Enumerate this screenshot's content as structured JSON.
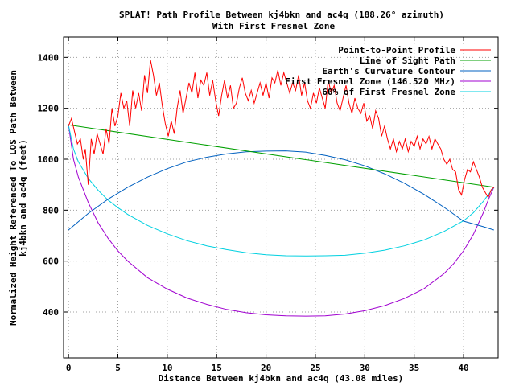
{
  "chart_data": {
    "type": "line",
    "title": "SPLAT! Path Profile Between kj4bkn and ac4q (188.26° azimuth)",
    "subtitle": "With First Fresnel Zone",
    "xlabel": "Distance Between kj4bkn and ac4q (43.08 miles)",
    "ylabel": "Normalized Height Referenced To LOS Path Between kj4bkn and ac4q (feet)",
    "ylabel_lines": [
      "Normalized Height Referenced To LOS Path Between",
      "kj4bkn and ac4q (feet)"
    ],
    "xlim": [
      -0.5,
      43.5
    ],
    "ylim": [
      220,
      1480
    ],
    "xticks": [
      0,
      5,
      10,
      15,
      20,
      25,
      30,
      35,
      40
    ],
    "yticks": [
      400,
      600,
      800,
      1000,
      1200,
      1400
    ],
    "grid": true,
    "legend_position": "top-right",
    "colors": {
      "profile": "#ff0000",
      "los": "#00a000",
      "earth": "#0060c0",
      "fresnel": "#a000d0",
      "fresnel60": "#00d0e0"
    },
    "series": [
      {
        "key": "profile",
        "name": "Point-to-Point Profile",
        "points": [
          [
            0,
            1130
          ],
          [
            0.3,
            1160
          ],
          [
            0.6,
            1110
          ],
          [
            0.9,
            1060
          ],
          [
            1.2,
            1080
          ],
          [
            1.5,
            1000
          ],
          [
            1.7,
            1040
          ],
          [
            2.0,
            900
          ],
          [
            2.3,
            1080
          ],
          [
            2.6,
            1020
          ],
          [
            2.9,
            1100
          ],
          [
            3.2,
            1060
          ],
          [
            3.5,
            1020
          ],
          [
            3.8,
            1120
          ],
          [
            4.1,
            1060
          ],
          [
            4.4,
            1200
          ],
          [
            4.7,
            1130
          ],
          [
            5.0,
            1170
          ],
          [
            5.3,
            1260
          ],
          [
            5.6,
            1200
          ],
          [
            5.9,
            1230
          ],
          [
            6.2,
            1130
          ],
          [
            6.5,
            1270
          ],
          [
            6.8,
            1200
          ],
          [
            7.1,
            1260
          ],
          [
            7.4,
            1190
          ],
          [
            7.7,
            1330
          ],
          [
            8.0,
            1260
          ],
          [
            8.3,
            1390
          ],
          [
            8.6,
            1330
          ],
          [
            8.9,
            1250
          ],
          [
            9.2,
            1300
          ],
          [
            9.5,
            1210
          ],
          [
            9.8,
            1140
          ],
          [
            10.1,
            1090
          ],
          [
            10.4,
            1150
          ],
          [
            10.7,
            1100
          ],
          [
            11.0,
            1200
          ],
          [
            11.3,
            1270
          ],
          [
            11.6,
            1180
          ],
          [
            11.9,
            1240
          ],
          [
            12.2,
            1300
          ],
          [
            12.5,
            1260
          ],
          [
            12.8,
            1340
          ],
          [
            13.1,
            1240
          ],
          [
            13.4,
            1310
          ],
          [
            13.7,
            1290
          ],
          [
            14.0,
            1340
          ],
          [
            14.3,
            1250
          ],
          [
            14.6,
            1310
          ],
          [
            14.9,
            1230
          ],
          [
            15.2,
            1170
          ],
          [
            15.5,
            1250
          ],
          [
            15.8,
            1310
          ],
          [
            16.1,
            1240
          ],
          [
            16.4,
            1290
          ],
          [
            16.7,
            1200
          ],
          [
            17.0,
            1220
          ],
          [
            17.3,
            1280
          ],
          [
            17.6,
            1320
          ],
          [
            17.9,
            1260
          ],
          [
            18.2,
            1230
          ],
          [
            18.5,
            1270
          ],
          [
            18.8,
            1220
          ],
          [
            19.1,
            1260
          ],
          [
            19.4,
            1300
          ],
          [
            19.7,
            1250
          ],
          [
            20.0,
            1300
          ],
          [
            20.3,
            1240
          ],
          [
            20.6,
            1320
          ],
          [
            20.9,
            1300
          ],
          [
            21.2,
            1350
          ],
          [
            21.5,
            1290
          ],
          [
            21.8,
            1340
          ],
          [
            22.1,
            1300
          ],
          [
            22.4,
            1260
          ],
          [
            22.7,
            1300
          ],
          [
            23.0,
            1270
          ],
          [
            23.3,
            1330
          ],
          [
            23.6,
            1250
          ],
          [
            23.9,
            1300
          ],
          [
            24.2,
            1230
          ],
          [
            24.5,
            1200
          ],
          [
            24.8,
            1260
          ],
          [
            25.1,
            1220
          ],
          [
            25.4,
            1280
          ],
          [
            25.7,
            1240
          ],
          [
            26.0,
            1200
          ],
          [
            26.3,
            1310
          ],
          [
            26.6,
            1260
          ],
          [
            26.9,
            1290
          ],
          [
            27.2,
            1220
          ],
          [
            27.5,
            1190
          ],
          [
            27.8,
            1240
          ],
          [
            28.1,
            1290
          ],
          [
            28.4,
            1220
          ],
          [
            28.7,
            1180
          ],
          [
            29.0,
            1240
          ],
          [
            29.3,
            1200
          ],
          [
            29.6,
            1180
          ],
          [
            29.9,
            1220
          ],
          [
            30.2,
            1150
          ],
          [
            30.5,
            1170
          ],
          [
            30.8,
            1120
          ],
          [
            31.1,
            1190
          ],
          [
            31.4,
            1160
          ],
          [
            31.7,
            1090
          ],
          [
            32.0,
            1130
          ],
          [
            32.3,
            1080
          ],
          [
            32.6,
            1040
          ],
          [
            32.9,
            1080
          ],
          [
            33.2,
            1030
          ],
          [
            33.5,
            1070
          ],
          [
            33.8,
            1040
          ],
          [
            34.1,
            1080
          ],
          [
            34.4,
            1030
          ],
          [
            34.7,
            1070
          ],
          [
            35.0,
            1050
          ],
          [
            35.3,
            1090
          ],
          [
            35.6,
            1040
          ],
          [
            35.9,
            1080
          ],
          [
            36.2,
            1060
          ],
          [
            36.5,
            1090
          ],
          [
            36.8,
            1040
          ],
          [
            37.1,
            1080
          ],
          [
            37.4,
            1060
          ],
          [
            37.7,
            1040
          ],
          [
            38.0,
            1000
          ],
          [
            38.3,
            980
          ],
          [
            38.6,
            1000
          ],
          [
            38.9,
            960
          ],
          [
            39.2,
            950
          ],
          [
            39.5,
            880
          ],
          [
            39.8,
            860
          ],
          [
            40.1,
            920
          ],
          [
            40.4,
            960
          ],
          [
            40.7,
            950
          ],
          [
            41.0,
            990
          ],
          [
            41.3,
            960
          ],
          [
            41.6,
            930
          ],
          [
            41.9,
            890
          ],
          [
            42.2,
            870
          ],
          [
            42.5,
            850
          ],
          [
            42.8,
            880
          ],
          [
            43.08,
            890
          ]
        ]
      },
      {
        "key": "los",
        "name": "Line of Sight Path",
        "points": [
          [
            0,
            1135
          ],
          [
            43.08,
            890
          ]
        ]
      },
      {
        "key": "earth",
        "name": "Earth's Curvature Contour",
        "points": [
          [
            0,
            722
          ],
          [
            2,
            787
          ],
          [
            4,
            843
          ],
          [
            6,
            890
          ],
          [
            8,
            930
          ],
          [
            10,
            963
          ],
          [
            12,
            990
          ],
          [
            14,
            1008
          ],
          [
            16,
            1021
          ],
          [
            18,
            1029
          ],
          [
            20,
            1032
          ],
          [
            22,
            1033
          ],
          [
            24,
            1028
          ],
          [
            26,
            1015
          ],
          [
            28,
            998
          ],
          [
            30,
            974
          ],
          [
            32,
            943
          ],
          [
            34,
            906
          ],
          [
            36,
            862
          ],
          [
            38,
            812
          ],
          [
            40,
            757
          ],
          [
            42,
            735
          ],
          [
            43.08,
            722
          ]
        ]
      },
      {
        "key": "fresnel",
        "name": "First Fresnel Zone (146.520 MHz)",
        "points": [
          [
            0,
            1135
          ],
          [
            0.5,
            1000
          ],
          [
            1,
            930
          ],
          [
            2,
            830
          ],
          [
            3,
            750
          ],
          [
            4,
            690
          ],
          [
            5,
            640
          ],
          [
            6,
            600
          ],
          [
            8,
            535
          ],
          [
            10,
            490
          ],
          [
            12,
            455
          ],
          [
            14,
            430
          ],
          [
            16,
            410
          ],
          [
            18,
            397
          ],
          [
            20,
            389
          ],
          [
            22,
            385
          ],
          [
            24,
            384
          ],
          [
            26,
            385
          ],
          [
            28,
            392
          ],
          [
            30,
            405
          ],
          [
            32,
            425
          ],
          [
            34,
            453
          ],
          [
            36,
            492
          ],
          [
            38,
            550
          ],
          [
            39,
            590
          ],
          [
            40,
            640
          ],
          [
            41,
            705
          ],
          [
            42,
            790
          ],
          [
            42.5,
            840
          ],
          [
            43.08,
            890
          ]
        ]
      },
      {
        "key": "fresnel60",
        "name": "60% of First Fresnel Zone",
        "points": [
          [
            0,
            1135
          ],
          [
            0.5,
            1040
          ],
          [
            1,
            990
          ],
          [
            2,
            925
          ],
          [
            3,
            878
          ],
          [
            4,
            840
          ],
          [
            5,
            810
          ],
          [
            6,
            783
          ],
          [
            8,
            740
          ],
          [
            10,
            707
          ],
          [
            12,
            680
          ],
          [
            14,
            660
          ],
          [
            16,
            645
          ],
          [
            18,
            633
          ],
          [
            20,
            625
          ],
          [
            22,
            621
          ],
          [
            24,
            620
          ],
          [
            26,
            621
          ],
          [
            28,
            623
          ],
          [
            30,
            631
          ],
          [
            32,
            643
          ],
          [
            34,
            660
          ],
          [
            36,
            683
          ],
          [
            38,
            716
          ],
          [
            40,
            758
          ],
          [
            41,
            790
          ],
          [
            42,
            835
          ],
          [
            43.08,
            890
          ]
        ]
      }
    ]
  }
}
